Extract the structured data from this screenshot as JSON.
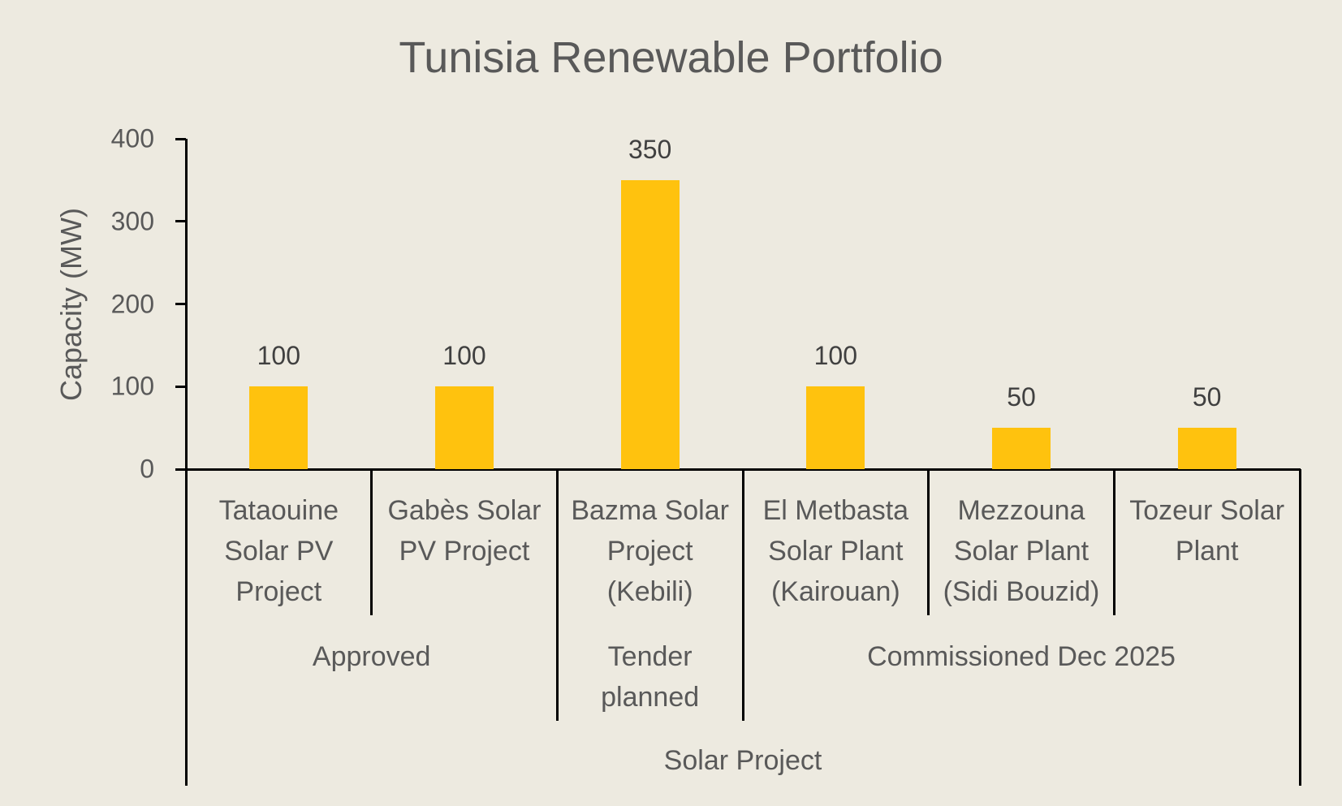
{
  "chart_data": {
    "type": "bar",
    "title": "Tunisia Renewable Portfolio",
    "xlabel": "Solar Project",
    "ylabel": "Capacity (MW)",
    "ylim": [
      0,
      400
    ],
    "yticks": [
      "0",
      "100",
      "200",
      "300",
      "400"
    ],
    "grid": false,
    "legend": null,
    "categories": [
      "Tataouine Solar PV Project",
      "Gabès Solar PV Project",
      "Bazma Solar Project (Kebili)",
      "El Metbasta Solar Plant (Kairouan)",
      "Mezzouna Solar Plant (Sidi Bouzid)",
      "Tozeur Solar Plant"
    ],
    "groups": [
      {
        "label": "Approved",
        "categories": [
          "Tataouine Solar PV Project",
          "Gabès Solar PV Project"
        ]
      },
      {
        "label": "Tender planned",
        "categories": [
          "Bazma Solar Project (Kebili)"
        ]
      },
      {
        "label": "Commissioned Dec 2025",
        "categories": [
          "El Metbasta Solar Plant (Kairouan)",
          "Mezzouna Solar Plant (Sidi Bouzid)",
          "Tozeur Solar Plant"
        ]
      }
    ],
    "values": [
      100,
      100,
      350,
      100,
      50,
      50
    ],
    "data_labels": [
      "100",
      "100",
      "350",
      "100",
      "50",
      "50"
    ],
    "bar_color": "#ffc20e"
  },
  "labels": {
    "cat_lines": [
      [
        "Tataouine",
        "Solar PV",
        "Project"
      ],
      [
        "Gabès Solar",
        "PV Project"
      ],
      [
        "Bazma Solar",
        "Project",
        "(Kebili)"
      ],
      [
        "El Metbasta",
        "Solar Plant",
        "(Kairouan)"
      ],
      [
        "Mezzouna",
        "Solar Plant",
        "(Sidi Bouzid)"
      ],
      [
        "Tozeur Solar",
        "Plant"
      ]
    ],
    "group_lines": [
      [
        "Approved"
      ],
      [
        "Tender",
        "planned"
      ],
      [
        "Commissioned Dec 2025"
      ]
    ]
  }
}
